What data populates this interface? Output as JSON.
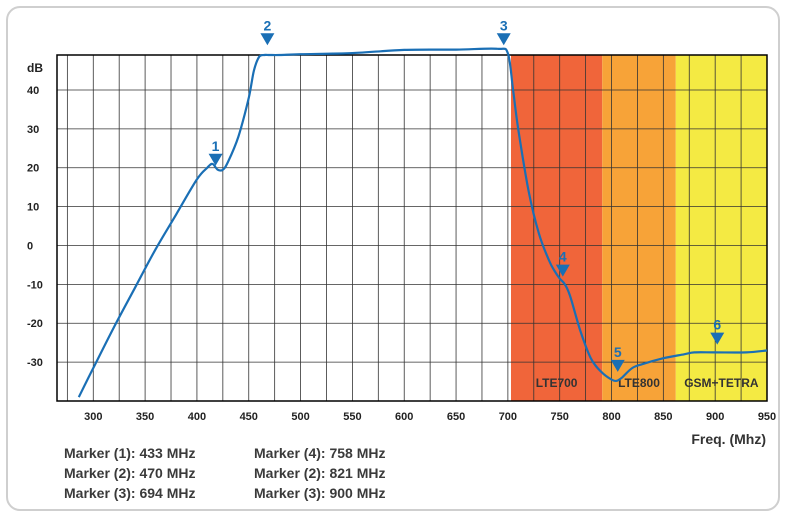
{
  "chart_data": {
    "type": "line",
    "xlabel": "Freq. (Mhz)",
    "ylabel": "dB",
    "xlim": [
      265,
      950
    ],
    "ylim": [
      -40,
      49
    ],
    "xticks": [
      300,
      350,
      400,
      450,
      500,
      550,
      600,
      650,
      700,
      750,
      800,
      850,
      900,
      950
    ],
    "yticks": [
      40,
      30,
      20,
      10,
      0,
      -10,
      -20,
      -30
    ],
    "grid": true,
    "series": [
      {
        "color": "#1a6fb5",
        "x": [
          286,
          300,
          320,
          340,
          360,
          380,
          400,
          410,
          415,
          420,
          425,
          430,
          440,
          450,
          455,
          460,
          465,
          470,
          480,
          500,
          550,
          600,
          650,
          690,
          700,
          705,
          710,
          720,
          730,
          740,
          745,
          750,
          755,
          760,
          770,
          780,
          790,
          800,
          805,
          810,
          820,
          830,
          850,
          870,
          880,
          900,
          930,
          950
        ],
        "y": [
          -39,
          -31.5,
          -21,
          -11,
          -1,
          8,
          17,
          20,
          21,
          19.5,
          19.5,
          21.5,
          28,
          38,
          45,
          48.5,
          49,
          49,
          49,
          49.2,
          49.5,
          50.3,
          50.4,
          50.6,
          49.4,
          40,
          30,
          14,
          3,
          -4,
          -6.5,
          -8.5,
          -10,
          -13,
          -22,
          -29,
          -32.5,
          -34.5,
          -34.8,
          -34,
          -31.5,
          -30.5,
          -29,
          -28,
          -27.5,
          -27.5,
          -27.5,
          -27
        ]
      }
    ],
    "bands": [
      {
        "label": "LTE700",
        "from": 703,
        "to": 791,
        "color": "#f0653a"
      },
      {
        "label": "LTE800",
        "from": 791,
        "to": 862,
        "color": "#f7a338"
      },
      {
        "label": "GSM+TETRA",
        "from": 862,
        "to": 950,
        "color": "#f4ea43"
      }
    ],
    "markers": [
      {
        "label": "1",
        "x": 418,
        "y": 20.5
      },
      {
        "label": "2",
        "x": 468,
        "y": 51.5
      },
      {
        "label": "3",
        "x": 696,
        "y": 51.5
      },
      {
        "label": "4",
        "x": 753,
        "y": -8
      },
      {
        "label": "5",
        "x": 806,
        "y": -32.5
      },
      {
        "label": "6",
        "x": 902,
        "y": -25.5
      }
    ]
  },
  "marker_list": [
    "Marker (1): 433 MHz",
    "Marker (4): 758 MHz",
    "Marker (2): 470 MHz",
    "Marker (2): 821 MHz",
    "Marker (3): 694 MHz",
    "Marker (3): 900 MHz"
  ]
}
